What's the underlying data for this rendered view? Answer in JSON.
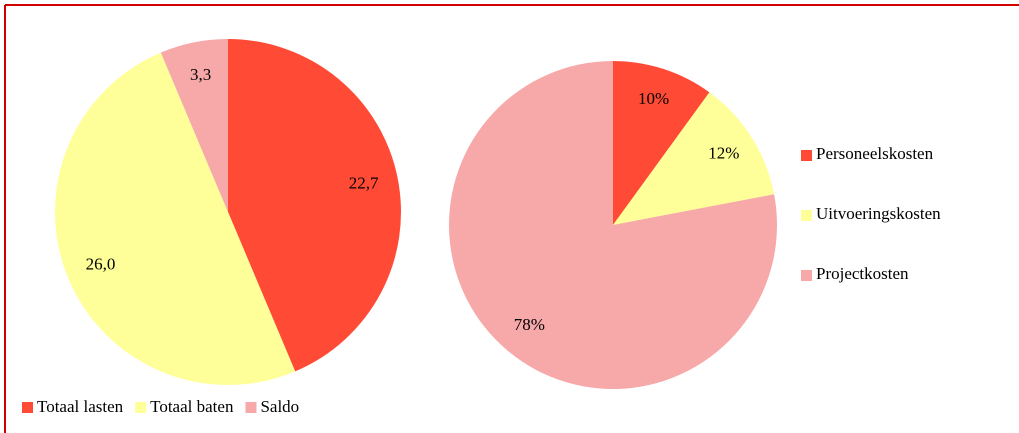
{
  "chart_data": [
    {
      "type": "pie",
      "categories": [
        "Totaal lasten",
        "Totaal baten",
        "Saldo"
      ],
      "values": [
        22.7,
        26.0,
        3.3
      ],
      "value_labels": [
        "22,7",
        "26,0",
        "3,3"
      ],
      "colors": [
        "#ff4b36",
        "#ffff99",
        "#f7a8a8"
      ],
      "legend": "bottom"
    },
    {
      "type": "pie",
      "categories": [
        "Personeelskosten",
        "Uitvoeringskosten",
        "Projectkosten"
      ],
      "values": [
        10,
        12,
        78
      ],
      "value_labels": [
        "10%",
        "12%",
        "78%"
      ],
      "colors": [
        "#ff4b36",
        "#ffff99",
        "#f7a8a8"
      ],
      "legend": "right"
    }
  ]
}
